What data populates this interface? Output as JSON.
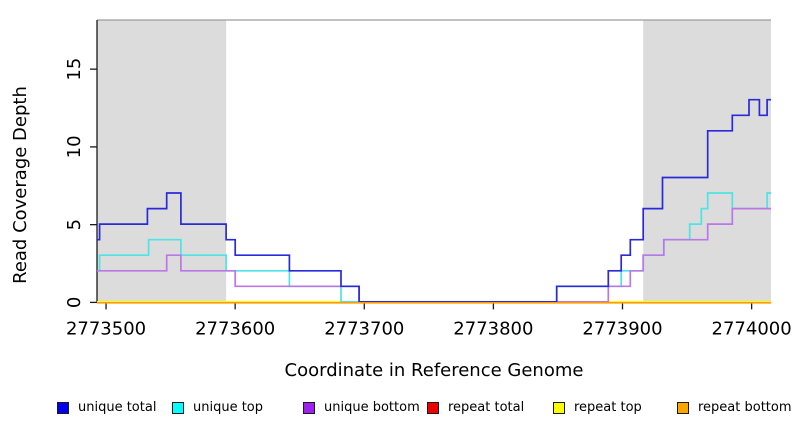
{
  "chart_data": {
    "type": "line",
    "subtype": "step",
    "title": "",
    "xlabel": "Coordinate in Reference Genome",
    "ylabel": "Read Coverage Depth",
    "xlim": [
      2773493,
      2774015
    ],
    "ylim": [
      0,
      18.1
    ],
    "x_ticks": [
      2773500,
      2773600,
      2773700,
      2773800,
      2773900,
      2774000
    ],
    "y_ticks": [
      0,
      5,
      10,
      15
    ],
    "grid": false,
    "legend_position": "bottom",
    "shaded_regions": [
      {
        "name": "repeat-region-left",
        "x_start": 2773493,
        "x_end": 2773593,
        "color": "#dcdcdc"
      },
      {
        "name": "repeat-region-right",
        "x_start": 2773916,
        "x_end": 2774015,
        "color": "#dcdcdc"
      }
    ],
    "series": [
      {
        "name": "unique total",
        "color": "#2a2ad9",
        "step_points": [
          [
            2773493,
            4
          ],
          [
            2773495,
            5
          ],
          [
            2773532,
            6
          ],
          [
            2773547,
            7
          ],
          [
            2773558,
            5
          ],
          [
            2773593,
            4
          ],
          [
            2773600,
            3
          ],
          [
            2773642,
            2
          ],
          [
            2773682,
            1
          ],
          [
            2773696,
            0
          ],
          [
            2773849,
            1
          ],
          [
            2773889,
            2
          ],
          [
            2773899,
            3
          ],
          [
            2773906,
            4
          ],
          [
            2773916,
            6
          ],
          [
            2773931,
            8
          ],
          [
            2773966,
            11
          ],
          [
            2773985,
            12
          ],
          [
            2773998,
            13
          ],
          [
            2774006,
            12
          ],
          [
            2774012,
            13
          ]
        ],
        "end_x": 2774015
      },
      {
        "name": "unique top",
        "color": "#4fe3e3",
        "step_points": [
          [
            2773493,
            2
          ],
          [
            2773495,
            3
          ],
          [
            2773533,
            4
          ],
          [
            2773558,
            3
          ],
          [
            2773593,
            2
          ],
          [
            2773642,
            1
          ],
          [
            2773682,
            0
          ],
          [
            2773849,
            1
          ],
          [
            2773899,
            2
          ],
          [
            2773916,
            3
          ],
          [
            2773932,
            4
          ],
          [
            2773952,
            5
          ],
          [
            2773961,
            6
          ],
          [
            2773966,
            7
          ],
          [
            2773985,
            6
          ],
          [
            2774012,
            7
          ]
        ],
        "end_x": 2774015
      },
      {
        "name": "unique bottom",
        "color": "#bb77e6",
        "step_points": [
          [
            2773493,
            2
          ],
          [
            2773547,
            3
          ],
          [
            2773558,
            2
          ],
          [
            2773600,
            1
          ],
          [
            2773696,
            0
          ],
          [
            2773889,
            1
          ],
          [
            2773906,
            2
          ],
          [
            2773916,
            3
          ],
          [
            2773932,
            4
          ],
          [
            2773966,
            5
          ],
          [
            2773985,
            6
          ]
        ],
        "end_x": 2774015
      },
      {
        "name": "repeat total",
        "color": "#e60000",
        "step_points": [
          [
            2773493,
            0
          ]
        ],
        "end_x": 2774015
      },
      {
        "name": "repeat top",
        "color": "#ffff00",
        "step_points": [
          [
            2773493,
            0
          ]
        ],
        "end_x": 2774015
      },
      {
        "name": "repeat bottom",
        "color": "#ff9d00",
        "step_points": [
          [
            2773493,
            0
          ]
        ],
        "end_x": 2774015
      }
    ]
  },
  "legend": {
    "items": [
      {
        "label": "unique total",
        "color": "#0000ee"
      },
      {
        "label": "unique top",
        "color": "#00ffff"
      },
      {
        "label": "unique bottom",
        "color": "#a020f0"
      },
      {
        "label": "repeat total",
        "color": "#ee0000"
      },
      {
        "label": "repeat top",
        "color": "#ffff00"
      },
      {
        "label": "repeat bottom",
        "color": "#ffa500"
      }
    ]
  }
}
